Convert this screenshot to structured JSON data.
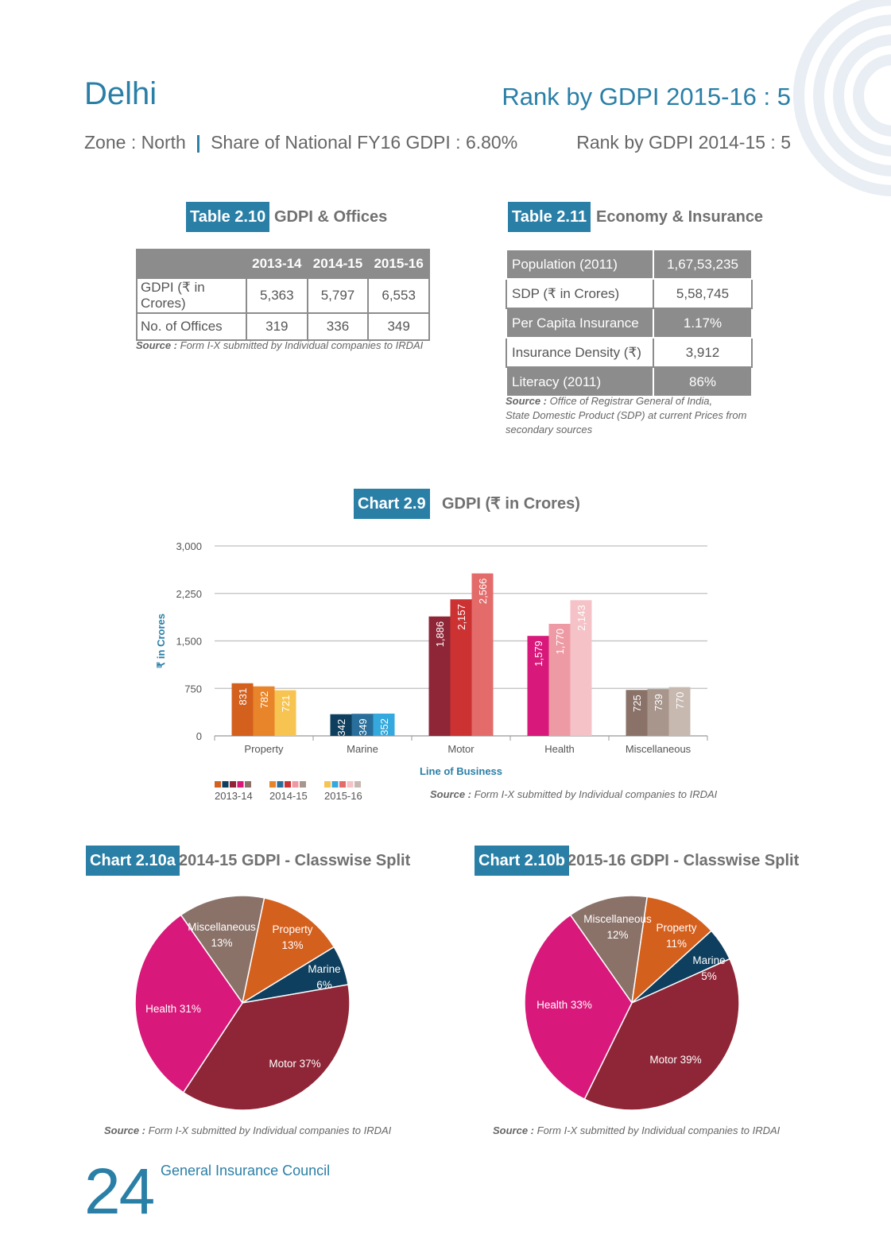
{
  "header": {
    "state": "Delhi",
    "zone": "Zone : North",
    "separator": "|",
    "share": "Share of National FY16 GDPI : 6.80%",
    "rank_1516": "Rank by GDPI 2015-16 : 5",
    "rank_1415": "Rank by GDPI 2014-15 : 5"
  },
  "table_2_10": {
    "tag": "Table 2.10",
    "title": "GDPI & Offices",
    "columns": [
      "",
      "2013-14",
      "2014-15",
      "2015-16"
    ],
    "rows": [
      [
        "GDPI (₹ in Crores)",
        "5,363",
        "5,797",
        "6,553"
      ],
      [
        "No. of Offices",
        "319",
        "336",
        "349"
      ]
    ],
    "source_label": "Source :",
    "source_text": "Form I-X submitted by Individual companies to IRDAI"
  },
  "table_2_11": {
    "tag": "Table 2.11",
    "title": "Economy & Insurance",
    "rows": [
      [
        "Population (2011)",
        "1,67,53,235"
      ],
      [
        "SDP (₹ in Crores)",
        "5,58,745"
      ],
      [
        "Per Capita Insurance",
        "1.17%"
      ],
      [
        "Insurance Density (₹)",
        "3,912"
      ],
      [
        "Literacy (2011)",
        "86%"
      ]
    ],
    "source_label": "Source :",
    "source_lines": [
      "Office of Registrar General of India,",
      "State Domestic Product (SDP) at current Prices from",
      "secondary sources"
    ]
  },
  "chart_2_9": {
    "tag": "Chart 2.9",
    "title": "GDPI (₹ in Crores)",
    "source_label": "Source :",
    "source_text": "Form I-X submitted by Individual companies to IRDAI"
  },
  "chart_2_10a": {
    "tag": "Chart 2.10a",
    "title": "2014-15 GDPI - Classwise Split",
    "source_label": "Source :",
    "source_text": "Form I-X submitted by Individual companies to IRDAI"
  },
  "chart_2_10b": {
    "tag": "Chart 2.10b",
    "title": "2015-16 GDPI - Classwise Split",
    "source_label": "Source :",
    "source_text": "Form I-X submitted by Individual companies to IRDAI"
  },
  "footer": {
    "page_number": "24",
    "org": "General Insurance Council"
  },
  "colors": {
    "accent": "#2a7fa7",
    "table_header": "#8c8c8c",
    "property": [
      "#d4601e",
      "#e8842a",
      "#f7c451"
    ],
    "marine": [
      "#0e3f5e",
      "#2a6f9b",
      "#35a9dd"
    ],
    "motor": [
      "#8e2637",
      "#cd3232",
      "#e36b6a"
    ],
    "health": [
      "#d8187a",
      "#ee9aa4",
      "#f5c2c7"
    ],
    "misc": [
      "#8a7269",
      "#a8968c",
      "#c7b8b0"
    ]
  },
  "chart_data": [
    {
      "type": "bar",
      "categories": [
        "Property",
        "Marine",
        "Motor",
        "Health",
        "Miscellaneous"
      ],
      "series": [
        {
          "name": "2013-14",
          "values": [
            831,
            342,
            1886,
            1579,
            725
          ]
        },
        {
          "name": "2014-15",
          "values": [
            782,
            349,
            2157,
            1770,
            739
          ]
        },
        {
          "name": "2015-16",
          "values": [
            721,
            352,
            2566,
            2143,
            770
          ]
        }
      ],
      "value_labels": [
        [
          "831",
          "342",
          "1,886",
          "1,579",
          "725"
        ],
        [
          "782",
          "349",
          "2,157",
          "1,770",
          "739"
        ],
        [
          "721",
          "352",
          "2,566",
          "2,143",
          "770"
        ]
      ],
      "ylabel": "₹ in Crores",
      "xlabel": "Line of Business",
      "ylim": [
        0,
        3000
      ],
      "yticks": [
        0,
        750,
        1500,
        2250,
        3000
      ],
      "ytick_labels": [
        "0",
        "750",
        "1,500",
        "2,250",
        "3,000"
      ],
      "grid": true,
      "legend": "bottom-left"
    },
    {
      "type": "pie",
      "slices": [
        {
          "label": "Miscellaneous",
          "pct_text": "13%",
          "value": 13,
          "color": "#8a7269"
        },
        {
          "label": "Property",
          "pct_text": "13%",
          "value": 13,
          "color": "#d4601e"
        },
        {
          "label": "Marine",
          "pct_text": "6%",
          "value": 6,
          "color": "#0e3f5e"
        },
        {
          "label": "Motor",
          "pct_text": "37%",
          "value": 37,
          "color": "#8e2637"
        },
        {
          "label": "Health",
          "pct_text": "31%",
          "value": 31,
          "color": "#d8187a"
        }
      ]
    },
    {
      "type": "pie",
      "slices": [
        {
          "label": "Miscellaneous",
          "pct_text": "12%",
          "value": 12,
          "color": "#8a7269"
        },
        {
          "label": "Property",
          "pct_text": "11%",
          "value": 11,
          "color": "#d4601e"
        },
        {
          "label": "Marine",
          "pct_text": "5%",
          "value": 5,
          "color": "#0e3f5e"
        },
        {
          "label": "Motor",
          "pct_text": "39%",
          "value": 39,
          "color": "#8e2637"
        },
        {
          "label": "Health",
          "pct_text": "33%",
          "value": 33,
          "color": "#d8187a"
        }
      ]
    }
  ]
}
